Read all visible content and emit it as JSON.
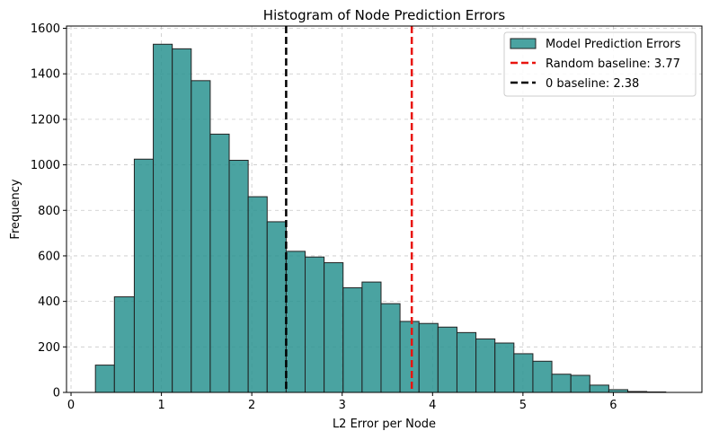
{
  "chart_data": {
    "type": "bar",
    "title": "Histogram of Node Prediction Errors",
    "xlabel": "L2 Error per Node",
    "ylabel": "Frequency",
    "xlim": [
      -0.05,
      6.98
    ],
    "ylim": [
      0,
      1610
    ],
    "xticks": [
      0,
      1,
      2,
      3,
      4,
      5,
      6
    ],
    "yticks": [
      0,
      200,
      400,
      600,
      800,
      1000,
      1200,
      1400,
      1600
    ],
    "grid": true,
    "legend_position": "top-right",
    "bar_color": "#2a9390",
    "bar_edge_color": "#222222",
    "bin_edges": [
      0.27,
      0.48,
      0.7,
      0.91,
      1.12,
      1.33,
      1.54,
      1.75,
      1.96,
      2.17,
      2.38,
      2.59,
      2.8,
      3.01,
      3.22,
      3.43,
      3.64,
      3.85,
      4.06,
      4.27,
      4.48,
      4.69,
      4.9,
      5.11,
      5.32,
      5.53,
      5.74,
      5.95,
      6.16,
      6.37,
      6.58
    ],
    "counts": [
      120,
      420,
      1025,
      1530,
      1510,
      1370,
      1135,
      1020,
      860,
      750,
      620,
      595,
      570,
      460,
      485,
      390,
      312,
      303,
      287,
      263,
      235,
      217,
      170,
      137,
      80,
      75,
      32,
      12,
      4,
      2
    ],
    "series": [
      {
        "name": "Model Prediction Errors",
        "kind": "histogram",
        "color": "#2a9390"
      },
      {
        "name": "Random baseline: 3.77",
        "kind": "vline",
        "x": 3.77,
        "color": "#e8140e",
        "dash": "dashed"
      },
      {
        "name": "0 baseline: 2.38",
        "kind": "vline",
        "x": 2.38,
        "color": "#000000",
        "dash": "dashed"
      }
    ]
  }
}
